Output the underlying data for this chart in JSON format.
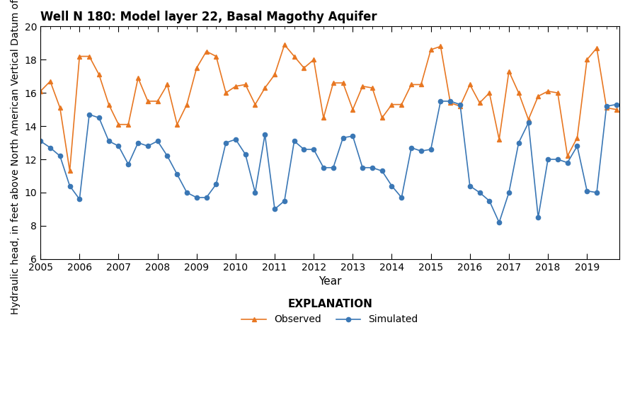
{
  "title": "Well N 180: Model layer 22, Basal Magothy Aquifer",
  "xlabel": "Year",
  "ylabel": "Hydraulic head, in feet above North American Vertical Datum of 1988",
  "ylim": [
    6,
    20
  ],
  "yticks": [
    6,
    8,
    10,
    12,
    14,
    16,
    18,
    20
  ],
  "xlim_start": 2005.0,
  "xlim_end": 2019.83,
  "xticks": [
    2005,
    2006,
    2007,
    2008,
    2009,
    2010,
    2011,
    2012,
    2013,
    2014,
    2015,
    2016,
    2017,
    2018,
    2019
  ],
  "observed_color": "#e87722",
  "simulated_color": "#3a77b5",
  "observed_x": [
    2005.0,
    2005.25,
    2005.5,
    2005.75,
    2006.0,
    2006.25,
    2006.5,
    2006.75,
    2007.0,
    2007.25,
    2007.5,
    2007.75,
    2008.0,
    2008.25,
    2008.5,
    2008.75,
    2009.0,
    2009.25,
    2009.5,
    2009.75,
    2010.0,
    2010.25,
    2010.5,
    2010.75,
    2011.0,
    2011.25,
    2011.5,
    2011.75,
    2012.0,
    2012.25,
    2012.5,
    2012.75,
    2013.0,
    2013.25,
    2013.5,
    2013.75,
    2014.0,
    2014.25,
    2014.5,
    2014.75,
    2015.0,
    2015.25,
    2015.5,
    2015.75,
    2016.0,
    2016.25,
    2016.5,
    2016.75,
    2017.0,
    2017.25,
    2017.5,
    2017.75,
    2018.0,
    2018.25,
    2018.5,
    2018.75,
    2019.0,
    2019.25,
    2019.5,
    2019.75
  ],
  "observed_y": [
    16.1,
    16.7,
    15.1,
    11.3,
    18.2,
    18.2,
    17.1,
    15.3,
    14.1,
    14.1,
    16.9,
    15.5,
    15.5,
    16.5,
    14.1,
    15.3,
    17.5,
    18.5,
    18.2,
    16.0,
    16.4,
    16.5,
    15.3,
    16.3,
    17.1,
    18.9,
    18.2,
    17.5,
    18.0,
    14.5,
    16.6,
    16.6,
    15.0,
    16.4,
    16.3,
    14.5,
    15.3,
    15.3,
    16.5,
    16.5,
    18.6,
    18.8,
    15.4,
    15.2,
    16.5,
    15.4,
    16.0,
    13.2,
    17.3,
    16.0,
    14.4,
    15.8,
    16.1,
    16.0,
    12.2,
    13.3,
    18.0,
    18.7,
    15.1,
    15.0
  ],
  "simulated_x": [
    2005.0,
    2005.25,
    2005.5,
    2005.75,
    2006.0,
    2006.25,
    2006.5,
    2006.75,
    2007.0,
    2007.25,
    2007.5,
    2007.75,
    2008.0,
    2008.25,
    2008.5,
    2008.75,
    2009.0,
    2009.25,
    2009.5,
    2009.75,
    2010.0,
    2010.25,
    2010.5,
    2010.75,
    2011.0,
    2011.25,
    2011.5,
    2011.75,
    2012.0,
    2012.25,
    2012.5,
    2012.75,
    2013.0,
    2013.25,
    2013.5,
    2013.75,
    2014.0,
    2014.25,
    2014.5,
    2014.75,
    2015.0,
    2015.25,
    2015.5,
    2015.75,
    2016.0,
    2016.25,
    2016.5,
    2016.75,
    2017.0,
    2017.25,
    2017.5,
    2017.75,
    2018.0,
    2018.25,
    2018.5,
    2018.75,
    2019.0,
    2019.25,
    2019.5,
    2019.75
  ],
  "simulated_y": [
    13.1,
    12.7,
    12.2,
    10.4,
    9.6,
    14.7,
    14.5,
    13.1,
    12.8,
    11.7,
    13.0,
    12.8,
    13.1,
    12.2,
    11.1,
    10.0,
    9.7,
    9.7,
    10.5,
    13.0,
    13.2,
    12.3,
    10.0,
    13.5,
    9.0,
    9.5,
    13.1,
    12.6,
    12.6,
    11.5,
    11.5,
    13.3,
    13.4,
    11.5,
    11.5,
    11.3,
    10.4,
    9.7,
    12.7,
    12.5,
    12.6,
    15.5,
    15.5,
    15.3,
    10.4,
    10.0,
    9.5,
    8.2,
    10.0,
    13.0,
    14.2,
    8.5,
    12.0,
    12.0,
    11.8,
    12.8,
    10.1,
    10.0,
    15.2,
    15.3
  ],
  "background_color": "#ffffff",
  "explanation_title": "EXPLANATION",
  "observed_label": "Observed",
  "simulated_label": "Simulated"
}
